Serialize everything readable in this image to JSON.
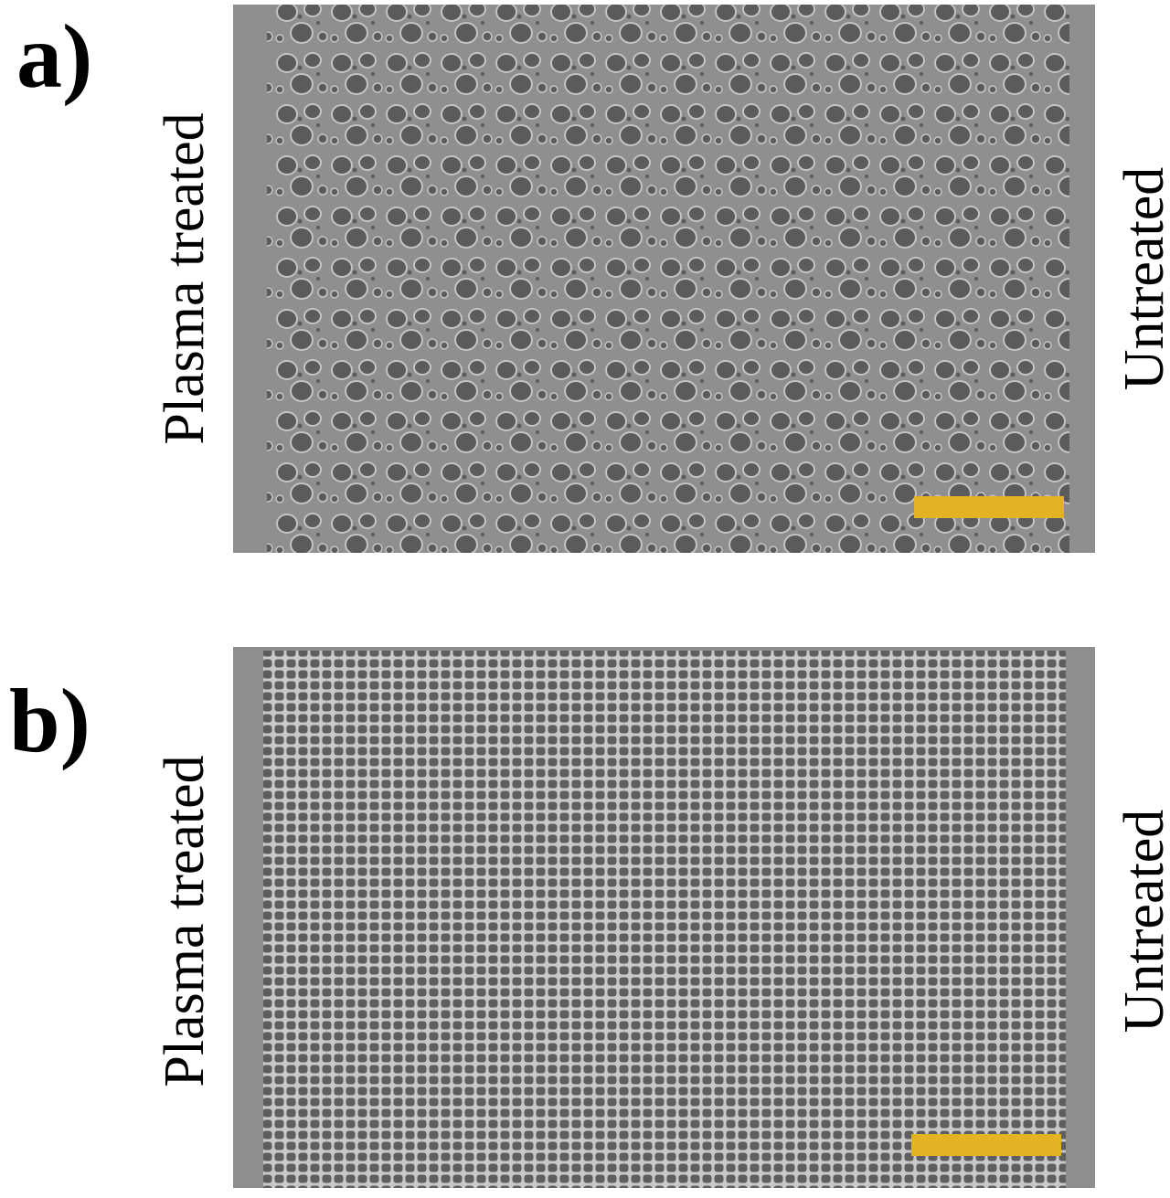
{
  "panels": [
    {
      "label": "a)",
      "left_label": "Plasma treated",
      "right_label": "Untreated"
    },
    {
      "label": "b)",
      "left_label": "Plasma treated",
      "right_label": "Untreated"
    }
  ]
}
